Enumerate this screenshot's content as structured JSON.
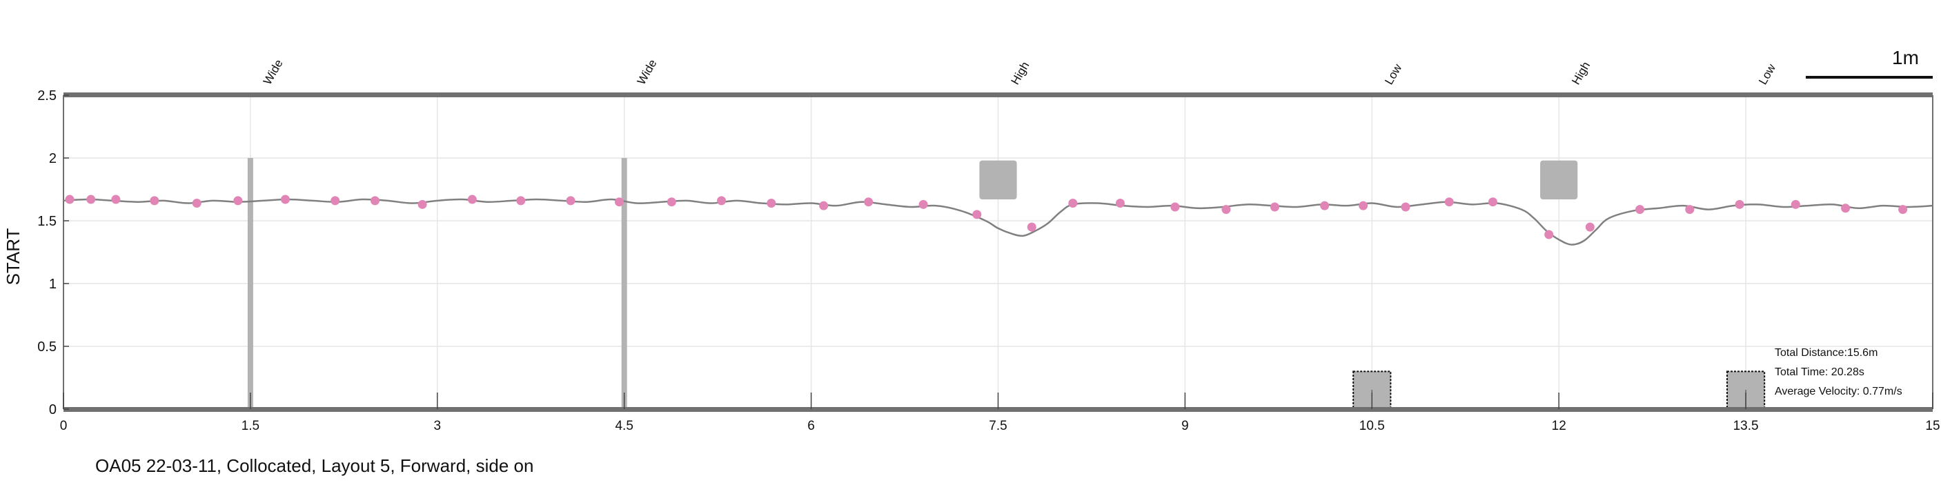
{
  "caption": "OA05 22-03-11, Collocated, Layout 5, Forward, side on",
  "scale_bar": {
    "label": "1m"
  },
  "stats": {
    "total_distance": "Total Distance:15.6m",
    "total_time": "Total Time: 20.28s",
    "average_velocity": "Average Velocity: 0.77m/s"
  },
  "colors": {
    "path": "#808080",
    "markers": "#e085b5",
    "obstacle": "#b3b3b3",
    "frame": "#707070",
    "grid": "#e6e6e6"
  },
  "chart_data": {
    "type": "line",
    "title": "",
    "xlabel": "",
    "ylabel": "START",
    "xlim": [
      0,
      15
    ],
    "ylim": [
      0,
      2.5
    ],
    "x_ticks": [
      0,
      1.5,
      3,
      4.5,
      6,
      7.5,
      9,
      10.5,
      12,
      13.5,
      15
    ],
    "x_tick_labels": [
      "0",
      "1.5",
      "3",
      "4.5",
      "6",
      "7.5",
      "9",
      "10.5",
      "12",
      "13.5",
      "15"
    ],
    "y_ticks": [
      0,
      0.5,
      1,
      1.5,
      2,
      2.5
    ],
    "y_tick_labels": [
      "0",
      "0.5",
      "1",
      "1.5",
      "2",
      "2.5"
    ],
    "grid": true,
    "top_annotations": [
      {
        "x": 1.5,
        "label": "Wide"
      },
      {
        "x": 4.5,
        "label": "Wide"
      },
      {
        "x": 7.5,
        "label": "High"
      },
      {
        "x": 10.5,
        "label": "Low"
      },
      {
        "x": 12,
        "label": "High"
      },
      {
        "x": 13.5,
        "label": "Low"
      }
    ],
    "obstacles": [
      {
        "type": "wide",
        "x": 1.5,
        "y_range": [
          0,
          2.0
        ]
      },
      {
        "type": "wide",
        "x": 4.5,
        "y_range": [
          0,
          2.0
        ]
      },
      {
        "type": "high",
        "x_range": [
          7.35,
          7.65
        ],
        "y_range": [
          1.67,
          1.98
        ]
      },
      {
        "type": "high",
        "x_range": [
          11.85,
          12.15
        ],
        "y_range": [
          1.67,
          1.98
        ]
      },
      {
        "type": "low",
        "x_range": [
          10.35,
          10.65
        ],
        "y_range": [
          0,
          0.3
        ]
      },
      {
        "type": "low",
        "x_range": [
          13.35,
          13.65
        ],
        "y_range": [
          0,
          0.3
        ]
      }
    ],
    "series": [
      {
        "x": [
          0,
          0.2,
          0.4,
          0.6,
          0.8,
          1.0,
          1.2,
          1.4,
          1.6,
          1.8,
          2.0,
          2.2,
          2.4,
          2.6,
          2.8,
          3.0,
          3.2,
          3.4,
          3.6,
          3.8,
          4.0,
          4.2,
          4.4,
          4.6,
          4.8,
          5.0,
          5.2,
          5.4,
          5.6,
          5.8,
          6.0,
          6.2,
          6.4,
          6.6,
          6.8,
          7.0,
          7.2,
          7.4,
          7.5,
          7.6,
          7.7,
          7.8,
          7.9,
          8.0,
          8.1,
          8.3,
          8.5,
          8.7,
          8.9,
          9.1,
          9.3,
          9.5,
          9.7,
          9.9,
          10.1,
          10.3,
          10.5,
          10.7,
          10.9,
          11.1,
          11.3,
          11.5,
          11.7,
          11.8,
          11.9,
          12.0,
          12.1,
          12.2,
          12.3,
          12.4,
          12.6,
          12.8,
          13.0,
          13.2,
          13.4,
          13.6,
          13.8,
          14.0,
          14.2,
          14.4,
          14.6,
          14.8,
          15.0
        ],
        "y": [
          1.66,
          1.67,
          1.66,
          1.65,
          1.66,
          1.64,
          1.66,
          1.65,
          1.66,
          1.67,
          1.66,
          1.65,
          1.67,
          1.66,
          1.64,
          1.66,
          1.67,
          1.65,
          1.66,
          1.67,
          1.66,
          1.65,
          1.67,
          1.64,
          1.65,
          1.66,
          1.64,
          1.66,
          1.64,
          1.63,
          1.64,
          1.62,
          1.65,
          1.63,
          1.61,
          1.62,
          1.58,
          1.5,
          1.44,
          1.4,
          1.38,
          1.42,
          1.48,
          1.57,
          1.63,
          1.64,
          1.62,
          1.61,
          1.62,
          1.6,
          1.61,
          1.63,
          1.62,
          1.61,
          1.63,
          1.62,
          1.64,
          1.61,
          1.63,
          1.65,
          1.63,
          1.64,
          1.59,
          1.52,
          1.42,
          1.35,
          1.31,
          1.34,
          1.43,
          1.52,
          1.58,
          1.6,
          1.62,
          1.59,
          1.62,
          1.63,
          1.61,
          1.62,
          1.63,
          1.6,
          1.62,
          1.61,
          1.62
        ]
      }
    ],
    "markers": {
      "x": [
        0.05,
        0.22,
        0.42,
        0.73,
        1.07,
        1.4,
        1.78,
        2.18,
        2.5,
        2.88,
        3.28,
        3.67,
        4.07,
        4.46,
        4.88,
        5.28,
        5.68,
        6.1,
        6.46,
        6.9,
        7.33,
        7.77,
        8.1,
        8.48,
        8.92,
        9.33,
        9.72,
        10.12,
        10.43,
        10.77,
        11.12,
        11.47,
        11.92,
        12.25,
        12.65,
        13.05,
        13.45,
        13.9,
        14.3,
        14.76
      ],
      "y": [
        1.67,
        1.67,
        1.67,
        1.66,
        1.64,
        1.66,
        1.67,
        1.66,
        1.66,
        1.63,
        1.67,
        1.66,
        1.66,
        1.65,
        1.65,
        1.66,
        1.64,
        1.62,
        1.65,
        1.63,
        1.55,
        1.45,
        1.64,
        1.64,
        1.61,
        1.59,
        1.61,
        1.62,
        1.62,
        1.61,
        1.65,
        1.65,
        1.39,
        1.45,
        1.59,
        1.59,
        1.63,
        1.63,
        1.6,
        1.59
      ]
    }
  }
}
